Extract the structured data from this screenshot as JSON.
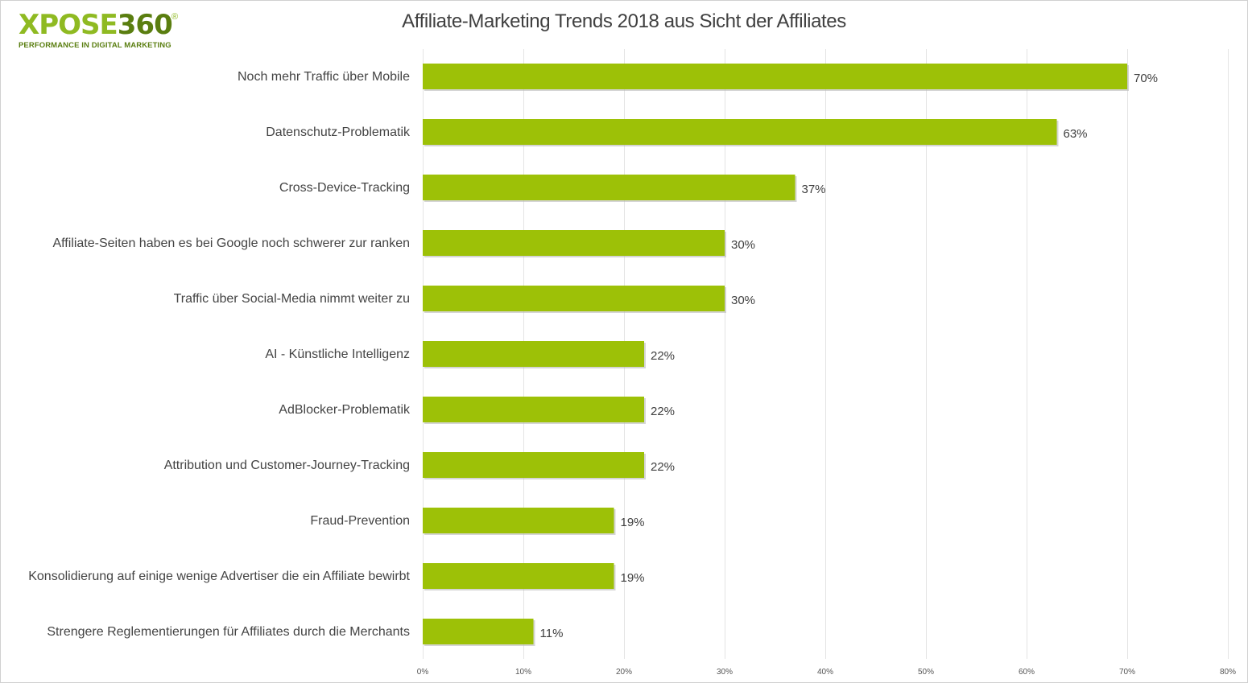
{
  "logo": {
    "word_letters": "XPOSE",
    "word_digits": "360",
    "reg_mark": "®",
    "tagline": "PERFORMANCE IN DIGITAL MARKETING"
  },
  "colors": {
    "bar": "#9dc107",
    "bar_shadow": "#b9b9b9",
    "grid": "#e4e4e4",
    "brand_green": "#8fba22",
    "brand_dark": "#5a7e10"
  },
  "chart_data": {
    "type": "bar",
    "orientation": "horizontal",
    "title": "Affiliate-Marketing Trends 2018 aus Sicht der Affiliates",
    "categories": [
      "Noch mehr Traffic über Mobile",
      "Datenschutz-Problematik",
      "Cross-Device-Tracking",
      "Affiliate-Seiten haben es bei Google noch schwerer zur ranken",
      "Traffic über Social-Media nimmt weiter zu",
      "AI - Künstliche Intelligenz",
      "AdBlocker-Problematik",
      "Attribution und Customer-Journey-Tracking",
      "Fraud-Prevention",
      "Konsolidierung auf einige wenige Advertiser die ein Affiliate bewirbt",
      "Strengere Reglementierungen für Affiliates durch die Merchants"
    ],
    "values": [
      70,
      63,
      37,
      30,
      30,
      22,
      22,
      22,
      19,
      19,
      11
    ],
    "value_labels": [
      "70%",
      "63%",
      "37%",
      "30%",
      "30%",
      "22%",
      "22%",
      "22%",
      "19%",
      "19%",
      "11%"
    ],
    "xlim": [
      0,
      80
    ],
    "x_ticks": [
      0,
      10,
      20,
      30,
      40,
      50,
      60,
      70,
      80
    ],
    "x_tick_labels": [
      "0%",
      "10%",
      "20%",
      "30%",
      "40%",
      "50%",
      "60%",
      "70%",
      "80%"
    ],
    "grid": true,
    "legend": "none"
  }
}
